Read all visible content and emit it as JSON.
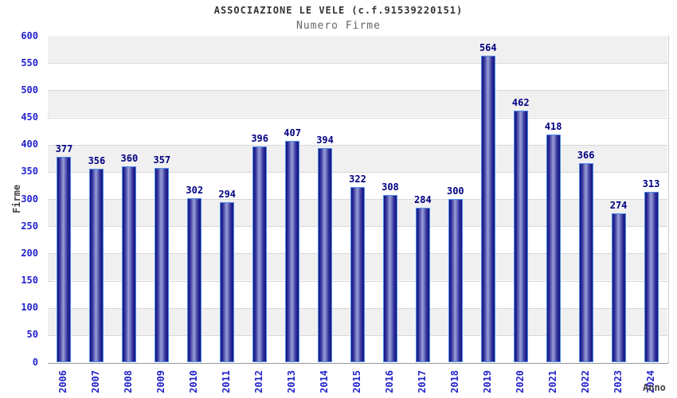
{
  "header": {
    "title": "ASSOCIAZIONE LE VELE (c.f.91539220151)",
    "subtitle": "Numero Firme"
  },
  "chart_data": {
    "type": "bar",
    "title": "ASSOCIAZIONE LE VELE (c.f.91539220151)",
    "subtitle": "Numero Firme",
    "categories": [
      "2006",
      "2007",
      "2008",
      "2009",
      "2010",
      "2011",
      "2012",
      "2013",
      "2014",
      "2015",
      "2016",
      "2017",
      "2018",
      "2019",
      "2020",
      "2021",
      "2022",
      "2023",
      "2024"
    ],
    "values": [
      377,
      356,
      360,
      357,
      302,
      294,
      396,
      407,
      394,
      322,
      308,
      284,
      300,
      564,
      462,
      418,
      366,
      274,
      313
    ],
    "xlabel": "Anno",
    "ylabel": "Firme",
    "ylim": [
      0,
      600
    ],
    "ytick_step": 50,
    "grid": true,
    "legend": "none",
    "colors": {
      "bar_dark": "#15157e",
      "bar_mid": "#2d2d9a",
      "bar_light": "#9aa0d6",
      "bar_border": "#4e8ce8",
      "tick_label": "#2222cc",
      "value_label": "#000082",
      "band_gray": "#f0f0f0",
      "band_white": "#ffffff",
      "grid_line": "#d8d8d8",
      "title_color": "#333333",
      "subtitle_color": "#666666",
      "axis_title_color": "#444444"
    }
  }
}
